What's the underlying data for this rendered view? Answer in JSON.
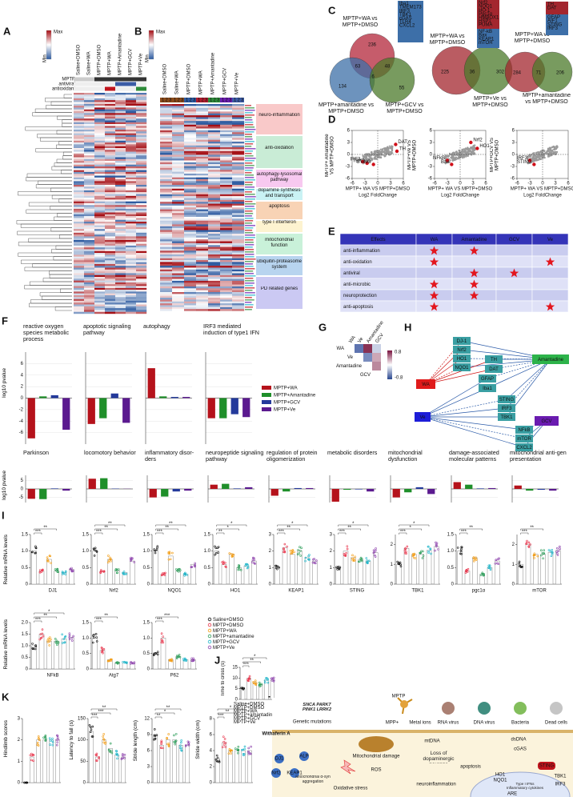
{
  "panel_labels": [
    "A",
    "B",
    "C",
    "D",
    "E",
    "F",
    "G",
    "H",
    "I",
    "J",
    "K",
    "L"
  ],
  "A": {
    "legend": [
      "Max",
      "Min"
    ],
    "columns": [
      "Saline+DMSO",
      "Saline+WA",
      "MPTP+DMSO",
      "MPTP+WA",
      "MPTP+Amantadine",
      "MPTP+GCV",
      "MPTP+Ve"
    ],
    "rows": [
      "MPTP",
      "antiviral",
      "antioxidant"
    ]
  },
  "B": {
    "legend": [
      "Max",
      "Min"
    ],
    "columns": [
      "Saline+DMSO",
      "Saline+WA",
      "MPTP+DMSO",
      "MPTP+WA",
      "MPTP+Amantadine",
      "MPTP+GCV",
      "MPTP+Ve"
    ],
    "group_numbers": [
      "1",
      "2",
      "3"
    ],
    "modules": [
      {
        "name": "neuro-inflammation",
        "color": "#f9c9c9"
      },
      {
        "name": "anti-oxidation",
        "color": "#c9ecd6"
      },
      {
        "name": "autophagy-lysosomal pathway",
        "color": "#f7c9f0"
      },
      {
        "name": "dopamine synthesis and transport",
        "color": "#c9f2f4"
      },
      {
        "name": "apoptosis",
        "color": "#f8d3b5"
      },
      {
        "name": "type I interferon",
        "color": "#fdf3d0"
      },
      {
        "name": "mitochondrial function",
        "color": "#c9f1d9"
      },
      {
        "name": "ubiquitin-proteasome system",
        "color": "#b8d4ef"
      },
      {
        "name": "PD related genes",
        "color": "#cbc9f3"
      }
    ]
  },
  "C": {
    "venns": [
      {
        "sets": [
          "MPTP+WA vs MPTP+DMSO",
          "MPTP+amantadine vs MPTP+DMSO",
          "MPTP+GCV vs MPTP+DMSO"
        ],
        "counts": [
          236,
          134,
          55,
          63,
          6,
          48
        ],
        "genes": [
          {
            "color": "#3d6fa8",
            "list": [
              "Iba1",
              "TMEM173",
              "IRF3",
              "TBK1",
              "cGAS",
              "TLR4",
              "CXCL2"
            ]
          }
        ]
      },
      {
        "sets": [
          "MPTP+WA vs MPTP+DMSO",
          "MPTP+Ve vs MPTP+DMSO"
        ],
        "counts": [
          225,
          36,
          302
        ],
        "genes": [
          {
            "color": "#a3262e",
            "list": [
              "Nrf2",
              "NQO1",
              "HO-1",
              "Pgc1α",
              "HMBOX1",
              "HSP1",
              "PUMA"
            ]
          },
          {
            "color": "#3d6fa8",
            "list": [
              "NF-kB",
              "Bax",
              "KEAP1",
              "mTOR"
            ]
          }
        ]
      },
      {
        "sets": [
          "MPTP+WA vs MPTP+DMSO",
          "MPTP+amantadine vs MPTP+DMSO"
        ],
        "counts": [
          284,
          71,
          206
        ],
        "genes": [
          {
            "color": "#a3262e",
            "list": [
              "TH",
              "DAT"
            ]
          },
          {
            "color": "#3d6fa8",
            "list": [
              "GFAP",
              "AIF1",
              "STING",
              "IRF3"
            ]
          }
        ]
      }
    ]
  },
  "D": {
    "x_label": "MPTP+ WA VS MPTP+DMSO",
    "x_unit": "Log2 FoldChange",
    "xlim": [
      -6,
      6
    ],
    "xticks": [
      -6,
      -3,
      0,
      3,
      6
    ],
    "ylim": [
      -6,
      6
    ],
    "yticks": [
      -6,
      -3,
      0,
      3,
      6
    ],
    "plots": [
      {
        "y_label": "MPTP+ Amantadine VS MPTP+DMSO",
        "points": [
          {
            "label": "DAT",
            "x": 4.2,
            "y": 2.5
          },
          {
            "label": "TH",
            "x": 4.5,
            "y": 0.8
          },
          {
            "label": "IRF3",
            "x": -3.5,
            "y": -1.8
          },
          {
            "label": "TBK1",
            "x": -2.5,
            "y": -2.2
          },
          {
            "label": "STING",
            "x": -1,
            "y": -2.5
          }
        ]
      },
      {
        "y_label": "MPTP+Ve VS MPTP+DMSO",
        "points": [
          {
            "label": "Nrf2",
            "x": 2.5,
            "y": 3
          },
          {
            "label": "HO1",
            "x": 4,
            "y": 1.5
          },
          {
            "label": "NFkB",
            "x": -3,
            "y": -1.5
          },
          {
            "label": "Bax",
            "x": -2,
            "y": -2.5
          }
        ]
      },
      {
        "y_label": "MPTP+GCV VS MPTP+DMSO",
        "points": [
          {
            "label": "IRF3",
            "x": -3,
            "y": -1.5
          },
          {
            "label": "STING",
            "x": -2,
            "y": -2.5
          }
        ]
      }
    ]
  },
  "E": {
    "header": [
      "Effects",
      "WA",
      "Amantadine",
      "GCV",
      "Ve"
    ],
    "rows": [
      {
        "effect": "anti-inflammation",
        "marks": [
          true,
          true,
          false,
          false
        ]
      },
      {
        "effect": "anti-oxidation",
        "marks": [
          true,
          false,
          false,
          true
        ]
      },
      {
        "effect": "antiviral",
        "marks": [
          false,
          true,
          true,
          false
        ]
      },
      {
        "effect": "anti-microbic",
        "marks": [
          true,
          true,
          false,
          false
        ]
      },
      {
        "effect": "neuroprotection",
        "marks": [
          true,
          true,
          false,
          false
        ]
      },
      {
        "effect": "anti-apoptosis",
        "marks": [
          true,
          false,
          false,
          true
        ]
      }
    ]
  },
  "F": {
    "y_label": "log10 pvalue",
    "series": [
      {
        "name": "MPTP+WA",
        "color": "#b5121b"
      },
      {
        "name": "MPTP+Amantadine",
        "color": "#1f8f2a"
      },
      {
        "name": "MPTP+GCV",
        "color": "#243a9b"
      },
      {
        "name": "MPTP+Ve",
        "color": "#5b1a8f"
      }
    ],
    "rows": [
      {
        "ylim": [
          -8,
          8
        ],
        "yticks": [
          -6,
          -4,
          -2,
          0,
          2,
          4,
          6
        ],
        "charts": [
          {
            "title": "reactive oxygen species metabolic process",
            "values": [
              -7,
              0.3,
              0.5,
              -5.5
            ]
          },
          {
            "title": "apoptotic signaling pathway",
            "values": [
              -4.5,
              -3.5,
              0.8,
              -4.3
            ]
          },
          {
            "title": "autophagy",
            "values": [
              5.2,
              0.3,
              0.2,
              0.2
            ]
          },
          {
            "title": "IRF3 mediated induction of type1 IFN",
            "values": [
              -3.5,
              -3.5,
              -2.8,
              -3.3
            ]
          }
        ]
      },
      {
        "ylim": [
          -8,
          8
        ],
        "yticks": [
          -5,
          0,
          5
        ],
        "charts": [
          {
            "title": "Parkinson",
            "values": [
              -5.8,
              -6,
              0.3,
              -1
            ]
          },
          {
            "title": "locomotory behavior",
            "values": [
              6,
              6.3,
              0.2,
              0.1
            ]
          },
          {
            "title": "inflammatory disor-ders",
            "values": [
              -5,
              -4.5,
              -1.5,
              -1
            ]
          },
          {
            "title": "neuropeptide signaling pathway",
            "values": [
              2.5,
              3,
              0.3,
              1
            ]
          },
          {
            "title": "regulation of protein oligomerization",
            "values": [
              -4,
              -1.5,
              0.5,
              0.5
            ]
          },
          {
            "title": "metabolic disorders",
            "values": [
              -7.5,
              -0.5,
              -0.3,
              -1.5
            ]
          },
          {
            "title": "mitochondrial dysfunction",
            "values": [
              -5,
              -2,
              1,
              -3
            ]
          },
          {
            "title": "damage-associated molecular patterns",
            "values": [
              4,
              2.5,
              0.3,
              0.5
            ]
          },
          {
            "title": "mitochondrial anti-gen presentation",
            "values": [
              2,
              -1,
              -0.5,
              -1
            ]
          }
        ]
      }
    ]
  },
  "G": {
    "labels": [
      "WA",
      "Ve",
      "Amantadine",
      "GCV"
    ],
    "matrix": [
      [
        null,
        -0.6,
        0.7,
        -0.2
      ],
      [
        null,
        null,
        -0.5,
        0.3
      ],
      [
        null,
        null,
        null,
        0.4
      ],
      [
        null,
        null,
        null,
        null
      ]
    ],
    "colorbar_ticks": [
      0.8,
      -0.8
    ]
  },
  "H": {
    "drugs": [
      {
        "name": "WA",
        "color": "#e01b1b"
      },
      {
        "name": "Amantadine",
        "color": "#2db34a"
      },
      {
        "name": "Ve",
        "color": "#1d1dd8"
      },
      {
        "name": "GCV",
        "color": "#6a1bb0"
      }
    ],
    "genes": [
      "DJ-1",
      "Nrf2",
      "HO1",
      "NQO1",
      "TH",
      "DAT",
      "GFAP",
      "Iba1",
      "STING",
      "IRF3",
      "TBK1",
      "NFkB",
      "mTOR",
      "CXCL2"
    ]
  },
  "I": {
    "y_label": "Relative mRNA levels",
    "groups": [
      {
        "name": "Saline+DMSO",
        "color": "#111111"
      },
      {
        "name": "MPTP+DMSO",
        "color": "#e8334a"
      },
      {
        "name": "MPTP+WA",
        "color": "#f39c12"
      },
      {
        "name": "MPTP+amantadine",
        "color": "#2e9e5b"
      },
      {
        "name": "MPTP+GCV",
        "color": "#1fb5c9"
      },
      {
        "name": "MPTP+Ve",
        "color": "#8e44ad"
      }
    ],
    "charts": [
      {
        "title": "DJ1",
        "values": [
          1.0,
          0.4,
          0.75,
          0.4,
          0.35,
          0.45
        ],
        "ylim": [
          0,
          1.5
        ],
        "yticks": [
          0,
          0.5,
          {
            "value": 1,
            "label": "1.0"
          },
          1.5
        ],
        "sig": [
          "***",
          "**"
        ]
      },
      {
        "title": "Nrf2",
        "values": [
          1.0,
          0.4,
          0.75,
          0.4,
          0.35,
          0.7
        ],
        "ylim": [
          0,
          1.5
        ],
        "yticks": [
          0,
          0.5,
          {
            "value": 1,
            "label": "1.0"
          },
          1.5
        ],
        "sig": [
          "***",
          "**",
          "**"
        ]
      },
      {
        "title": "NQO1",
        "values": [
          1.0,
          0.3,
          0.85,
          0.4,
          0.3,
          0.6
        ],
        "ylim": [
          0,
          1.5
        ],
        "yticks": [
          0,
          0.5,
          {
            "value": 1,
            "label": "1.0"
          },
          1.5
        ],
        "sig": [
          "***",
          "**",
          "**"
        ]
      },
      {
        "title": "HO1",
        "values": [
          1.0,
          0.6,
          0.9,
          0.5,
          0.55,
          0.7
        ],
        "ylim": [
          0,
          1.5
        ],
        "yticks": [
          0,
          0.5,
          {
            "value": 1,
            "label": "1.0"
          },
          1.5
        ],
        "sig": [
          "**",
          "*",
          "*"
        ]
      },
      {
        "title": "KEAP1",
        "values": [
          1.0,
          2.2,
          1.8,
          2.0,
          1.6,
          1.4
        ],
        "ylim": [
          0,
          3
        ],
        "yticks": [
          0,
          1,
          2,
          3
        ],
        "sig": [
          "***",
          "**",
          "*"
        ]
      },
      {
        "title": "STING",
        "values": [
          1.0,
          2.0,
          1.6,
          1.5,
          1.4,
          1.9
        ],
        "ylim": [
          0,
          3
        ],
        "yticks": [
          0,
          1,
          2,
          3
        ],
        "sig": [
          "***",
          "**",
          "*"
        ]
      },
      {
        "title": "TBK1",
        "values": [
          1.0,
          1.8,
          1.5,
          1.5,
          1.7,
          1.9
        ],
        "ylim": [
          0,
          2.5
        ],
        "yticks": [
          0,
          1,
          2
        ],
        "sig": [
          "***",
          "*",
          "*"
        ]
      },
      {
        "title": "pgc1α",
        "values": [
          1.0,
          0.4,
          0.8,
          0.3,
          0.5,
          0.7
        ],
        "ylim": [
          0,
          1.5
        ],
        "yticks": [
          0,
          0.5,
          {
            "value": 1,
            "label": "1.0"
          },
          1.5
        ],
        "sig": [
          "***",
          "**"
        ]
      },
      {
        "title": "mTOR",
        "values": [
          1.0,
          2.0,
          1.5,
          1.5,
          1.6,
          1.7
        ],
        "ylim": [
          0,
          2.5
        ],
        "yticks": [
          0,
          1,
          2
        ],
        "sig": [
          "***",
          "**"
        ]
      },
      {
        "title": "NFkB",
        "values": [
          1.0,
          1.5,
          1.2,
          1.2,
          1.3,
          1.35
        ],
        "ylim": [
          0,
          2
        ],
        "yticks": [
          0,
          0.5,
          {
            "value": 1,
            "label": "1.0"
          },
          1.5,
          {
            "value": 2,
            "label": "2.0"
          }
        ],
        "sig": [
          "***",
          "**",
          "*"
        ]
      },
      {
        "title": "Atg7",
        "values": [
          1.0,
          0.6,
          0.3,
          0.2,
          0.2,
          0.2
        ],
        "ylim": [
          0,
          1.5
        ],
        "yticks": [
          0,
          0.5,
          {
            "value": 1,
            "label": "1.0"
          },
          1.5
        ],
        "sig": [
          "***",
          "**"
        ]
      },
      {
        "title": "P62",
        "values": [
          0.5,
          1.0,
          0.3,
          0.4,
          0.3,
          0.3
        ],
        "ylim": [
          0,
          1.5
        ],
        "yticks": [
          0,
          0.5,
          {
            "value": 1,
            "label": "1.0"
          },
          1.5
        ],
        "sig": [
          "***",
          "***"
        ]
      }
    ]
  },
  "J": {
    "y_label": "Time to cross (s)",
    "values": [
      5,
      10,
      8,
      7,
      9,
      9
    ],
    "ylim": [
      0,
      15
    ],
    "yticks": [
      0,
      5,
      10,
      15
    ],
    "sig": [
      "***",
      "**",
      "*"
    ]
  },
  "K": {
    "charts": [
      {
        "y_label": "Hindlimb scores",
        "values": [
          0,
          1.2,
          2,
          2,
          2,
          2
        ],
        "ylim": [
          0,
          3
        ],
        "yticks": [
          0,
          1,
          2,
          3
        ],
        "sig": []
      },
      {
        "y_label": "Latency to fall (s)",
        "values": [
          120,
          60,
          100,
          80,
          65,
          60
        ],
        "ylim": [
          0,
          150
        ],
        "yticks": [
          0,
          50,
          100,
          150
        ],
        "sig": [
          "***",
          "***",
          "**"
        ]
      },
      {
        "y_label": "Stride length (cm)",
        "values": [
          9,
          7,
          8,
          8,
          7,
          7
        ],
        "ylim": [
          0,
          12
        ],
        "yticks": [
          0,
          3,
          6,
          9,
          12
        ],
        "sig": [
          "**",
          "*",
          "**"
        ]
      },
      {
        "y_label": "Stride width (cm)",
        "values": [
          3,
          5,
          4,
          4,
          4,
          4
        ],
        "ylim": [
          0,
          8
        ],
        "yticks": [
          0,
          2,
          4,
          6,
          8
        ],
        "sig": [
          "***",
          "**",
          "*"
        ]
      }
    ]
  },
  "L": {
    "labels": [
      "Withaferin A",
      "SNCA PARK7 PINK1 LRRK2",
      "Genetic mutations",
      "MPTP",
      "MPP+",
      "Metal ions",
      "RNA virus",
      "DNA virus",
      "Bacteria",
      "Dead cells",
      "DJ1",
      "ALP",
      "Nrf2",
      "KEAP1",
      "Mitochondrial damage",
      "Mitochondrial α-syn aggregation",
      "ROS",
      "Oxidative stress",
      "Loss of dopaminergic neurons",
      "apoptosis",
      "neuroinflammation",
      "mtDNA",
      "dsDNA",
      "cGAS",
      "STING",
      "TBK1",
      "IRF3",
      "HO1",
      "NQO1",
      "Type I IFNs Inflammatory cytokines",
      "ARE"
    ]
  }
}
